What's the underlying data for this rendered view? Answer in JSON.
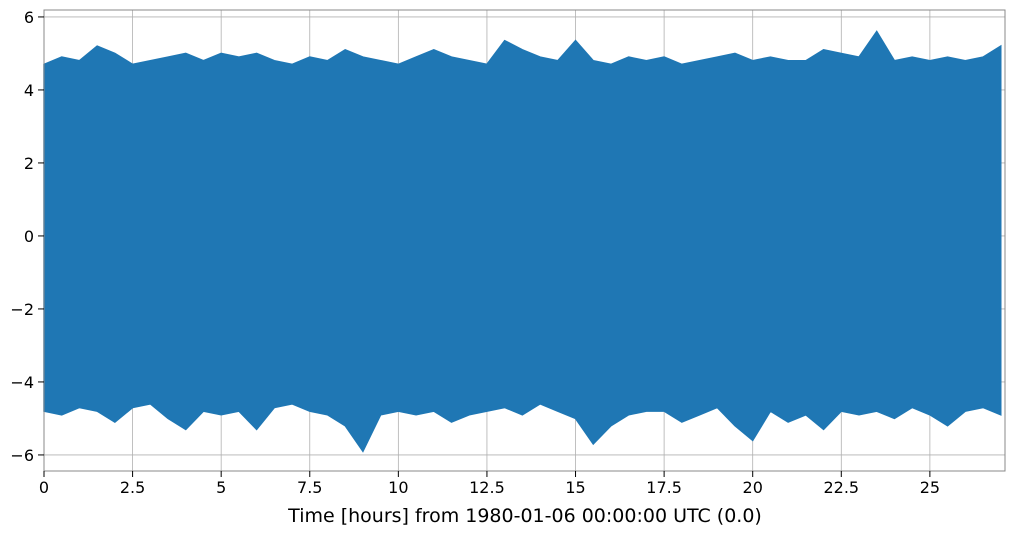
{
  "chart_data": {
    "type": "area",
    "xlabel": "Time [hours] from 1980-01-06 00:00:00 UTC (0.0)",
    "color": "#1f77b4",
    "x": [
      0,
      0.5,
      1,
      1.5,
      2,
      2.5,
      3,
      3.5,
      4,
      4.5,
      5,
      5.5,
      6,
      6.5,
      7,
      7.5,
      8,
      8.5,
      9,
      9.5,
      10,
      10.5,
      11,
      11.5,
      12,
      12.5,
      13,
      13.5,
      14,
      14.5,
      15,
      15.5,
      16,
      16.5,
      17,
      17.5,
      18,
      18.5,
      19,
      19.5,
      20,
      20.5,
      21,
      21.5,
      22,
      22.5,
      23,
      23.5,
      24,
      24.5,
      25,
      25.5,
      26,
      26.5,
      27
    ],
    "upper": [
      4.7,
      4.9,
      4.8,
      5.2,
      5.0,
      4.7,
      4.8,
      4.9,
      5.0,
      4.8,
      5.0,
      4.9,
      5.0,
      4.8,
      4.7,
      4.9,
      4.8,
      5.1,
      4.9,
      4.8,
      4.7,
      4.9,
      5.1,
      4.9,
      4.8,
      4.7,
      5.35,
      5.1,
      4.9,
      4.8,
      5.35,
      4.8,
      4.7,
      4.9,
      4.8,
      4.9,
      4.7,
      4.8,
      4.9,
      5.0,
      4.8,
      4.9,
      4.8,
      4.8,
      5.1,
      5.0,
      4.9,
      5.6,
      4.8,
      4.9,
      4.8,
      4.9,
      4.8,
      4.9,
      5.2
    ],
    "lower": [
      -4.8,
      -4.9,
      -4.7,
      -4.8,
      -5.1,
      -4.7,
      -4.6,
      -5.0,
      -5.3,
      -4.8,
      -4.9,
      -4.8,
      -5.3,
      -4.7,
      -4.6,
      -4.8,
      -4.9,
      -5.2,
      -5.9,
      -4.9,
      -4.8,
      -4.9,
      -4.8,
      -5.1,
      -4.9,
      -4.8,
      -4.7,
      -4.9,
      -4.6,
      -4.8,
      -5.0,
      -5.7,
      -5.2,
      -4.9,
      -4.8,
      -4.8,
      -5.1,
      -4.9,
      -4.7,
      -5.2,
      -5.6,
      -4.8,
      -5.1,
      -4.9,
      -5.3,
      -4.8,
      -4.9,
      -4.8,
      -5.0,
      -4.7,
      -4.9,
      -5.2,
      -4.8,
      -4.7,
      -4.9
    ],
    "xlim": [
      0,
      27.12
    ],
    "ylim": [
      -6.44,
      6.19
    ],
    "xticks": [
      0,
      2.5,
      5,
      7.5,
      10,
      12.5,
      15,
      17.5,
      20,
      22.5,
      25
    ],
    "yticks": [
      {
        "value": -6,
        "label": "−6"
      },
      {
        "value": -4,
        "label": "−4"
      },
      {
        "value": -2,
        "label": "−2"
      },
      0,
      2,
      4,
      6
    ],
    "grid": true
  }
}
